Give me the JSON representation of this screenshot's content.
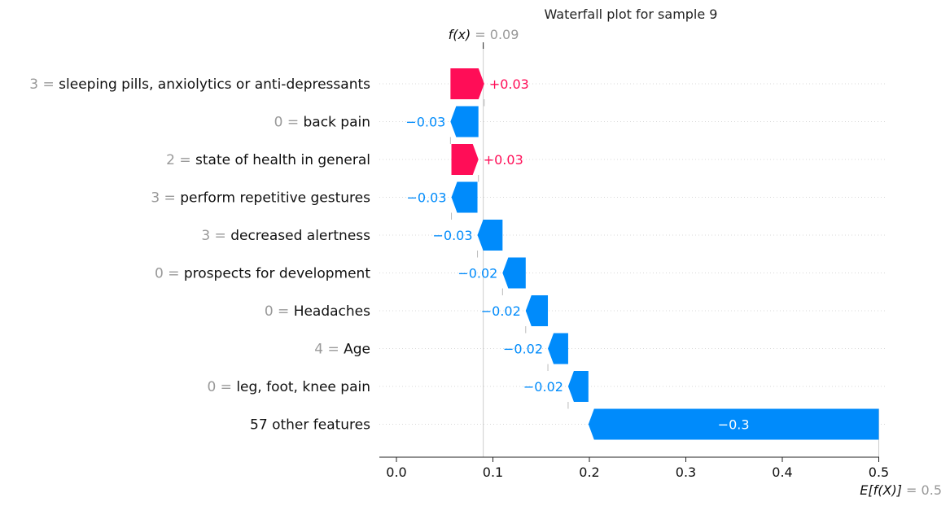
{
  "chart_data": {
    "type": "waterfall",
    "title": "Waterfall plot for sample 9",
    "fx_label": "f(x)",
    "fx_value": "0.09",
    "base_label": "E[f(X)]",
    "base_value": "0.5",
    "base": 0.5,
    "fx": 0.09,
    "xlim": [
      -0.018,
      0.5
    ],
    "ticks": [
      0.0,
      0.1,
      0.2,
      0.3,
      0.4,
      0.5
    ],
    "tick_labels": [
      "0.0",
      "0.1",
      "0.2",
      "0.3",
      "0.4",
      "0.5"
    ],
    "features": [
      {
        "value": "3",
        "name": "sleeping pills, anxiolytics or anti-depressants",
        "contribution": 0.03,
        "label": "+0.03",
        "start": 0.056,
        "end": 0.091
      },
      {
        "value": "0",
        "name": "back pain",
        "contribution": -0.03,
        "label": "−0.03",
        "start": 0.085,
        "end": 0.056
      },
      {
        "value": "2",
        "name": "state of health in general",
        "contribution": 0.03,
        "label": "+0.03",
        "start": 0.057,
        "end": 0.085
      },
      {
        "value": "3",
        "name": "perform repetitive gestures",
        "contribution": -0.03,
        "label": "−0.03",
        "start": 0.084,
        "end": 0.057
      },
      {
        "value": "3",
        "name": "decreased alertness",
        "contribution": -0.03,
        "label": "−0.03",
        "start": 0.11,
        "end": 0.084
      },
      {
        "value": "0",
        "name": "prospects for development",
        "contribution": -0.02,
        "label": "−0.02",
        "start": 0.134,
        "end": 0.11
      },
      {
        "value": "0",
        "name": "Headaches",
        "contribution": -0.02,
        "label": "−0.02",
        "start": 0.157,
        "end": 0.134
      },
      {
        "value": "4",
        "name": "Age",
        "contribution": -0.02,
        "label": "−0.02",
        "start": 0.178,
        "end": 0.157
      },
      {
        "value": "0",
        "name": "leg, foot, knee pain",
        "contribution": -0.02,
        "label": "−0.02",
        "start": 0.199,
        "end": 0.178
      },
      {
        "value": "",
        "name": "57 other features",
        "contribution": -0.3,
        "label": "−0.3",
        "start": 0.5,
        "end": 0.199
      }
    ],
    "colors": {
      "positive": "#ff0d57",
      "negative": "#008bfb",
      "muted": "#999999"
    }
  }
}
